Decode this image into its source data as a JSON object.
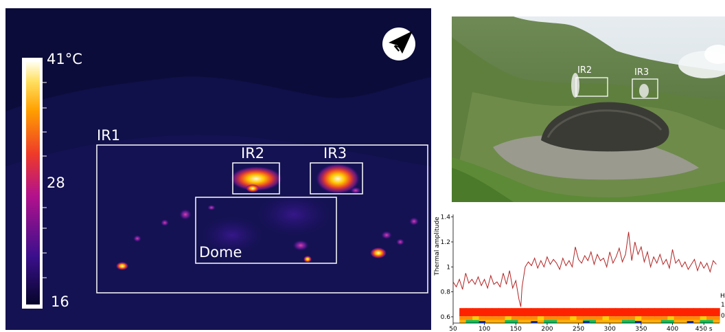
{
  "thermal_image": {
    "colorbar": {
      "max_label": "41°C",
      "mid_label": "28",
      "min_label": "16"
    },
    "regions": {
      "ir1": "IR1",
      "ir2": "IR2",
      "ir3": "IR3",
      "dome": "Dome"
    },
    "compass": "north-arrow-icon"
  },
  "photo": {
    "regions": {
      "ir2": "IR2",
      "ir3": "IR3"
    }
  },
  "chart_data": {
    "type": "line",
    "ylabel": "Thermal amplitude",
    "x_ticks": [
      "50",
      "100",
      "150",
      "200",
      "250",
      "300",
      "350",
      "400",
      "450 s"
    ],
    "y_ticks": [
      "0.6",
      "0.8",
      "1",
      "1.2",
      "1.4"
    ],
    "xlim": [
      50,
      475
    ],
    "ylim": [
      0.55,
      1.42
    ],
    "series_color": "#b22222",
    "x": [
      50,
      55,
      60,
      65,
      70,
      75,
      80,
      85,
      90,
      95,
      100,
      105,
      110,
      115,
      120,
      125,
      130,
      135,
      140,
      145,
      150,
      155,
      158,
      160,
      165,
      170,
      175,
      180,
      185,
      190,
      195,
      200,
      205,
      210,
      215,
      220,
      225,
      230,
      235,
      240,
      245,
      250,
      255,
      260,
      265,
      270,
      275,
      280,
      285,
      290,
      295,
      300,
      305,
      310,
      315,
      320,
      325,
      330,
      335,
      340,
      345,
      350,
      355,
      360,
      365,
      370,
      375,
      380,
      385,
      390,
      395,
      400,
      405,
      410,
      415,
      420,
      425,
      430,
      435,
      440,
      445,
      450,
      455,
      460,
      465,
      470
    ],
    "y": [
      0.88,
      0.84,
      0.9,
      0.82,
      0.95,
      0.87,
      0.9,
      0.86,
      0.92,
      0.85,
      0.9,
      0.83,
      0.93,
      0.86,
      0.88,
      0.84,
      0.95,
      0.86,
      0.97,
      0.83,
      0.89,
      0.74,
      0.68,
      0.84,
      1.0,
      1.04,
      1.01,
      1.07,
      0.99,
      1.05,
      1.0,
      1.08,
      1.02,
      1.06,
      1.03,
      0.98,
      1.07,
      1.01,
      1.05,
      1.0,
      1.16,
      1.06,
      1.03,
      1.09,
      1.05,
      1.12,
      1.02,
      1.1,
      1.05,
      1.07,
      1.0,
      1.12,
      1.03,
      1.08,
      1.15,
      1.04,
      1.1,
      1.28,
      1.05,
      1.2,
      1.1,
      1.16,
      1.04,
      1.12,
      1.0,
      1.08,
      1.03,
      1.1,
      1.02,
      1.06,
      0.99,
      1.14,
      1.03,
      1.06,
      1.0,
      1.04,
      0.98,
      1.02,
      1.06,
      0.97,
      1.04,
      0.99,
      1.03,
      0.96,
      1.05,
      1.02
    ],
    "heatmap": {
      "rows": 3,
      "colors": [
        "#ff2200",
        "#ff8c00",
        "#00c060",
        "#0033cc"
      ]
    }
  },
  "chart_right_labels": {
    "h": "H",
    "r1": "1",
    "r2": "0"
  }
}
